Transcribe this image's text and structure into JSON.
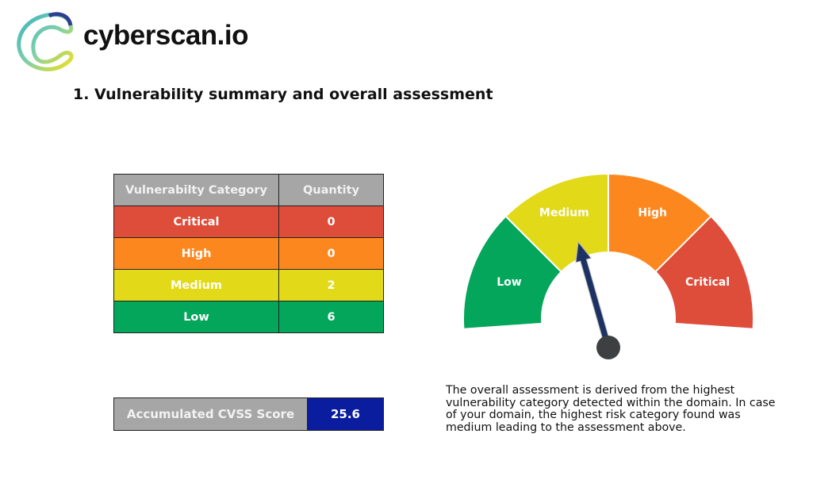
{
  "brand": {
    "name": "cyberscan.io"
  },
  "section": {
    "title": "1.  Vulnerability summary and overall assessment"
  },
  "vuln_table": {
    "headers": [
      "Vulnerabilty Category",
      "Quantity"
    ],
    "rows": [
      {
        "category": "Critical",
        "quantity": "0",
        "color": "#de4c3a"
      },
      {
        "category": "High",
        "quantity": "0",
        "color": "#fd871f"
      },
      {
        "category": "Medium",
        "quantity": "2",
        "color": "#e2d918"
      },
      {
        "category": "Low",
        "quantity": "6",
        "color": "#03a65a"
      }
    ]
  },
  "cvss": {
    "label": "Accumulated CVSS Score",
    "value": "25.6",
    "label_bg": "#a6a6a6",
    "value_bg": "#0a1d9e"
  },
  "gauge": {
    "segments": [
      {
        "label": "Low",
        "color": "#03a65a"
      },
      {
        "label": "Medium",
        "color": "#e2d918"
      },
      {
        "label": "High",
        "color": "#fd871f"
      },
      {
        "label": "Critical",
        "color": "#de4c3a"
      }
    ],
    "needle_category": "Medium",
    "needle_color": "#1c3263",
    "hub_color": "#3d3f40"
  },
  "assessment_text": "The overall assessment is derived from the highest vulnerability category detected within the domain. In case of your domain, the highest risk category found was medium leading to the assessment above."
}
